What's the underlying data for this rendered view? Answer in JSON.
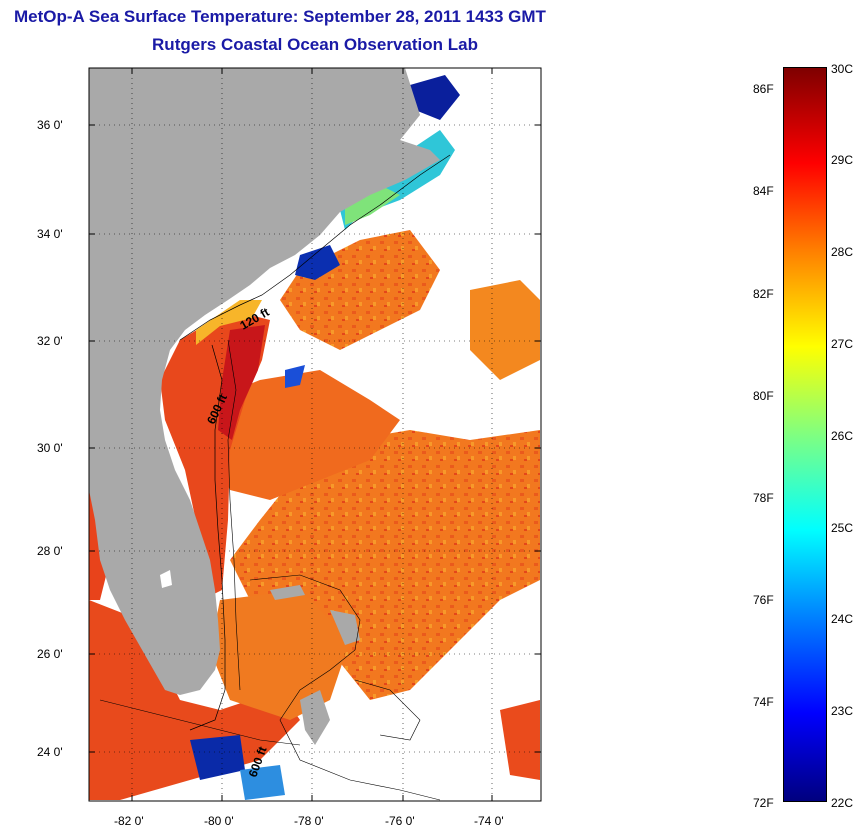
{
  "header": {
    "title": "MetOp-A Sea Surface Temperature:  September 28, 2011 1433 GMT",
    "subtitle": "Rutgers Coastal Ocean Observation Lab"
  },
  "map": {
    "lat_ticks": [
      "36 0'",
      "34 0'",
      "32 0'",
      "30 0'",
      "28 0'",
      "26 0'",
      "24 0'"
    ],
    "lon_ticks": [
      "-82 0'",
      "-80 0'",
      "-78 0'",
      "-76 0'",
      "-74 0'"
    ],
    "contour_labels": [
      "120 ft",
      "600 ft",
      "600 ft"
    ],
    "colors": {
      "land": "#a9a9a9",
      "ocean_warm": "#f47a1e",
      "ocean_hot": "#e02a1a",
      "coastal_cool": "#29c7e0",
      "cold": "#0a1f9c"
    }
  },
  "colorbar": {
    "fahrenheit": [
      "86F",
      "84F",
      "82F",
      "80F",
      "78F",
      "76F",
      "74F",
      "72F"
    ],
    "celsius": [
      "30C",
      "29C",
      "28C",
      "27C",
      "26C",
      "25C",
      "24C",
      "23C",
      "22C"
    ],
    "range_c": [
      22,
      30
    ],
    "colormap": [
      "#00007f",
      "#0000ff",
      "#0080ff",
      "#00ffff",
      "#80ff80",
      "#ffff00",
      "#ff8000",
      "#ff0000",
      "#7f0000"
    ]
  }
}
